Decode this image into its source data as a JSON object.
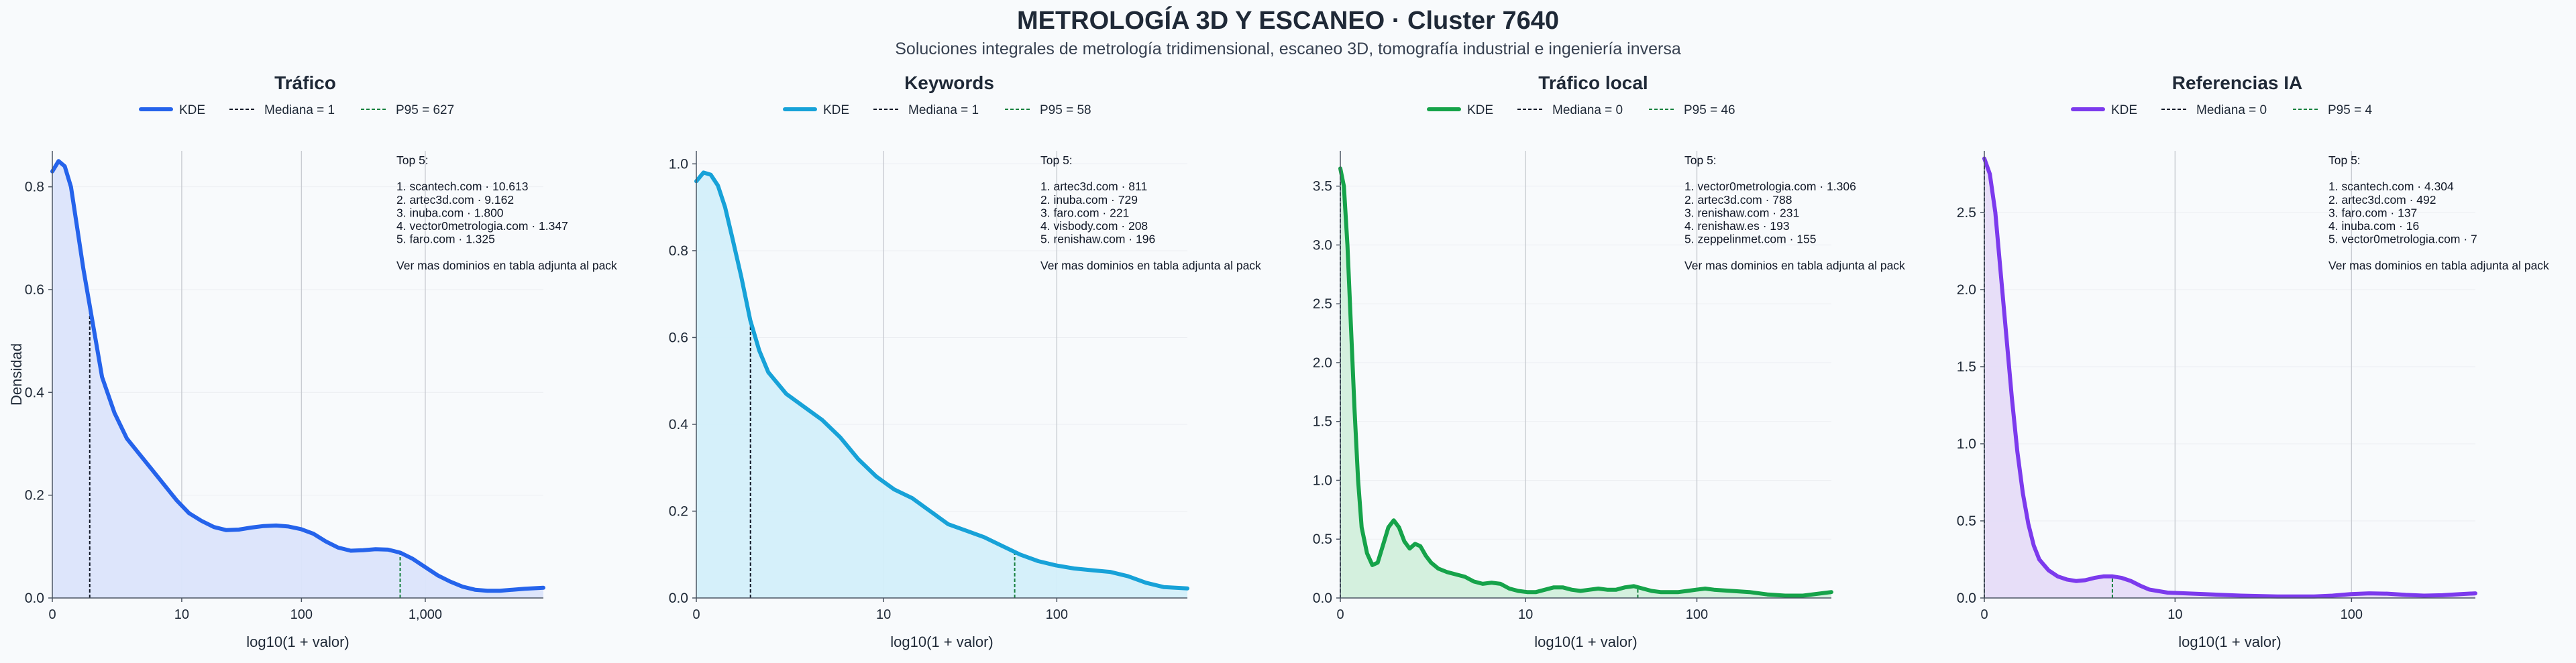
{
  "page": {
    "title": "METROLOGÍA 3D Y ESCANEO · Cluster 7640",
    "subtitle": "Soluciones integrales de metrología tridimensional, escaneo 3D, tomografía industrial e ingeniería inversa"
  },
  "chart_data": [
    {
      "type": "area",
      "title": "Tráfico",
      "xlabel": "log10(1 + valor)",
      "ylabel": "Densidad",
      "color": "#2563eb",
      "fill": "#dbe4fb",
      "xlim": [
        0,
        3.95
      ],
      "ylim": [
        0,
        0.87
      ],
      "x_ticks": [
        {
          "v": 0,
          "label": "0"
        },
        {
          "v": 1.041,
          "label": "10"
        },
        {
          "v": 2.004,
          "label": "100"
        },
        {
          "v": 3.0,
          "label": "1,000"
        }
      ],
      "y_ticks": [
        {
          "v": 0,
          "label": "0.0"
        },
        {
          "v": 0.2,
          "label": "0.2"
        },
        {
          "v": 0.4,
          "label": "0.4"
        },
        {
          "v": 0.6,
          "label": "0.6"
        },
        {
          "v": 0.8,
          "label": "0.8"
        }
      ],
      "legend": {
        "kde": "KDE",
        "median": "Mediana = 1",
        "p95": "P95 = 627"
      },
      "median_x": 0.301,
      "p95_x": 2.798,
      "kde": [
        [
          0,
          0.83
        ],
        [
          0.05,
          0.85
        ],
        [
          0.1,
          0.84
        ],
        [
          0.15,
          0.8
        ],
        [
          0.2,
          0.72
        ],
        [
          0.25,
          0.64
        ],
        [
          0.3,
          0.57
        ],
        [
          0.35,
          0.5
        ],
        [
          0.4,
          0.43
        ],
        [
          0.5,
          0.36
        ],
        [
          0.6,
          0.31
        ],
        [
          0.7,
          0.28
        ],
        [
          0.8,
          0.25
        ],
        [
          0.9,
          0.22
        ],
        [
          1.0,
          0.19
        ],
        [
          1.1,
          0.165
        ],
        [
          1.2,
          0.15
        ],
        [
          1.3,
          0.138
        ],
        [
          1.4,
          0.132
        ],
        [
          1.5,
          0.133
        ],
        [
          1.6,
          0.137
        ],
        [
          1.7,
          0.14
        ],
        [
          1.8,
          0.141
        ],
        [
          1.9,
          0.139
        ],
        [
          2.0,
          0.134
        ],
        [
          2.1,
          0.125
        ],
        [
          2.2,
          0.11
        ],
        [
          2.3,
          0.098
        ],
        [
          2.4,
          0.092
        ],
        [
          2.5,
          0.093
        ],
        [
          2.6,
          0.095
        ],
        [
          2.7,
          0.094
        ],
        [
          2.8,
          0.088
        ],
        [
          2.9,
          0.076
        ],
        [
          3.0,
          0.06
        ],
        [
          3.1,
          0.044
        ],
        [
          3.2,
          0.032
        ],
        [
          3.3,
          0.022
        ],
        [
          3.4,
          0.016
        ],
        [
          3.5,
          0.014
        ],
        [
          3.6,
          0.014
        ],
        [
          3.7,
          0.016
        ],
        [
          3.8,
          0.018
        ],
        [
          3.95,
          0.02
        ]
      ],
      "annotation": [
        "Top 5:",
        "",
        "1. scantech.com · 10.613",
        "2. artec3d.com · 9.162",
        "3. inuba.com · 1.800",
        "4. vector0metrologia.com · 1.347",
        "5. faro.com · 1.325",
        "",
        "Ver mas dominios en tabla adjunta al pack"
      ]
    },
    {
      "type": "area",
      "title": "Keywords",
      "xlabel": "log10(1 + valor)",
      "ylabel": "",
      "color": "#17a2d8",
      "fill": "#d3effa",
      "xlim": [
        0,
        2.73
      ],
      "ylim": [
        0,
        1.03
      ],
      "x_ticks": [
        {
          "v": 0,
          "label": "0"
        },
        {
          "v": 1.041,
          "label": "10"
        },
        {
          "v": 2.004,
          "label": "100"
        }
      ],
      "y_ticks": [
        {
          "v": 0,
          "label": "0.0"
        },
        {
          "v": 0.2,
          "label": "0.2"
        },
        {
          "v": 0.4,
          "label": "0.4"
        },
        {
          "v": 0.6,
          "label": "0.6"
        },
        {
          "v": 0.8,
          "label": "0.8"
        },
        {
          "v": 1.0,
          "label": "1.0"
        }
      ],
      "legend": {
        "kde": "KDE",
        "median": "Mediana = 1",
        "p95": "P95 = 58"
      },
      "median_x": 0.301,
      "p95_x": 1.77,
      "kde": [
        [
          0,
          0.96
        ],
        [
          0.04,
          0.98
        ],
        [
          0.08,
          0.975
        ],
        [
          0.12,
          0.95
        ],
        [
          0.16,
          0.9
        ],
        [
          0.2,
          0.83
        ],
        [
          0.25,
          0.74
        ],
        [
          0.3,
          0.64
        ],
        [
          0.35,
          0.57
        ],
        [
          0.4,
          0.52
        ],
        [
          0.5,
          0.47
        ],
        [
          0.6,
          0.44
        ],
        [
          0.7,
          0.41
        ],
        [
          0.8,
          0.37
        ],
        [
          0.9,
          0.32
        ],
        [
          1.0,
          0.28
        ],
        [
          1.1,
          0.25
        ],
        [
          1.2,
          0.23
        ],
        [
          1.3,
          0.2
        ],
        [
          1.4,
          0.17
        ],
        [
          1.5,
          0.155
        ],
        [
          1.6,
          0.14
        ],
        [
          1.7,
          0.12
        ],
        [
          1.8,
          0.1
        ],
        [
          1.9,
          0.085
        ],
        [
          2.0,
          0.075
        ],
        [
          2.1,
          0.068
        ],
        [
          2.2,
          0.064
        ],
        [
          2.3,
          0.06
        ],
        [
          2.4,
          0.05
        ],
        [
          2.5,
          0.035
        ],
        [
          2.6,
          0.025
        ],
        [
          2.73,
          0.022
        ]
      ],
      "annotation": [
        "Top 5:",
        "",
        "1. artec3d.com · 811",
        "2. inuba.com · 729",
        "3. faro.com · 221",
        "4. visbody.com · 208",
        "5. renishaw.com · 196",
        "",
        "Ver mas dominios en tabla adjunta al pack"
      ]
    },
    {
      "type": "area",
      "title": "Tráfico local",
      "xlabel": "log10(1 + valor)",
      "ylabel": "",
      "color": "#16a34a",
      "fill": "#d2efdc",
      "xlim": [
        0,
        2.76
      ],
      "ylim": [
        0,
        3.8
      ],
      "x_ticks": [
        {
          "v": 0,
          "label": "0"
        },
        {
          "v": 1.041,
          "label": "10"
        },
        {
          "v": 2.004,
          "label": "100"
        }
      ],
      "y_ticks": [
        {
          "v": 0,
          "label": "0.0"
        },
        {
          "v": 0.5,
          "label": "0.5"
        },
        {
          "v": 1.0,
          "label": "1.0"
        },
        {
          "v": 1.5,
          "label": "1.5"
        },
        {
          "v": 2.0,
          "label": "2.0"
        },
        {
          "v": 2.5,
          "label": "2.5"
        },
        {
          "v": 3.0,
          "label": "3.0"
        },
        {
          "v": 3.5,
          "label": "3.5"
        }
      ],
      "legend": {
        "kde": "KDE",
        "median": "Mediana = 0",
        "p95": "P95 = 46"
      },
      "median_x": 0,
      "p95_x": 1.672,
      "kde": [
        [
          0,
          3.65
        ],
        [
          0.02,
          3.5
        ],
        [
          0.04,
          3.0
        ],
        [
          0.06,
          2.3
        ],
        [
          0.08,
          1.6
        ],
        [
          0.1,
          1.0
        ],
        [
          0.12,
          0.6
        ],
        [
          0.15,
          0.38
        ],
        [
          0.18,
          0.28
        ],
        [
          0.21,
          0.3
        ],
        [
          0.24,
          0.45
        ],
        [
          0.27,
          0.6
        ],
        [
          0.3,
          0.66
        ],
        [
          0.33,
          0.6
        ],
        [
          0.36,
          0.48
        ],
        [
          0.39,
          0.42
        ],
        [
          0.42,
          0.46
        ],
        [
          0.45,
          0.44
        ],
        [
          0.48,
          0.36
        ],
        [
          0.51,
          0.3
        ],
        [
          0.55,
          0.25
        ],
        [
          0.6,
          0.22
        ],
        [
          0.65,
          0.2
        ],
        [
          0.7,
          0.18
        ],
        [
          0.75,
          0.14
        ],
        [
          0.8,
          0.12
        ],
        [
          0.85,
          0.13
        ],
        [
          0.9,
          0.12
        ],
        [
          0.95,
          0.08
        ],
        [
          1.0,
          0.06
        ],
        [
          1.05,
          0.05
        ],
        [
          1.1,
          0.05
        ],
        [
          1.15,
          0.07
        ],
        [
          1.2,
          0.09
        ],
        [
          1.25,
          0.09
        ],
        [
          1.3,
          0.07
        ],
        [
          1.35,
          0.06
        ],
        [
          1.4,
          0.07
        ],
        [
          1.45,
          0.08
        ],
        [
          1.5,
          0.07
        ],
        [
          1.55,
          0.07
        ],
        [
          1.6,
          0.09
        ],
        [
          1.65,
          0.1
        ],
        [
          1.7,
          0.08
        ],
        [
          1.75,
          0.06
        ],
        [
          1.8,
          0.05
        ],
        [
          1.85,
          0.05
        ],
        [
          1.9,
          0.05
        ],
        [
          1.95,
          0.06
        ],
        [
          2.0,
          0.07
        ],
        [
          2.05,
          0.08
        ],
        [
          2.1,
          0.07
        ],
        [
          2.2,
          0.06
        ],
        [
          2.3,
          0.05
        ],
        [
          2.4,
          0.03
        ],
        [
          2.5,
          0.02
        ],
        [
          2.6,
          0.02
        ],
        [
          2.76,
          0.05
        ]
      ],
      "annotation": [
        "Top 5:",
        "",
        "1. vector0metrologia.com · 1.306",
        "2. artec3d.com · 788",
        "3. renishaw.com · 231",
        "4. renishaw.es · 193",
        "5. zeppelinmet.com · 155",
        "",
        "Ver mas dominios en tabla adjunta al pack"
      ]
    },
    {
      "type": "area",
      "title": "Referencias IA",
      "xlabel": "log10(1 + valor)",
      "ylabel": "",
      "color": "#7c3aed",
      "fill": "#e6dcf8",
      "xlim": [
        0,
        2.68
      ],
      "ylim": [
        0,
        2.9
      ],
      "x_ticks": [
        {
          "v": 0,
          "label": "0"
        },
        {
          "v": 1.041,
          "label": "10"
        },
        {
          "v": 2.004,
          "label": "100"
        }
      ],
      "y_ticks": [
        {
          "v": 0,
          "label": "0.0"
        },
        {
          "v": 0.5,
          "label": "0.5"
        },
        {
          "v": 1.0,
          "label": "1.0"
        },
        {
          "v": 1.5,
          "label": "1.5"
        },
        {
          "v": 2.0,
          "label": "2.0"
        },
        {
          "v": 2.5,
          "label": "2.5"
        }
      ],
      "legend": {
        "kde": "KDE",
        "median": "Mediana = 0",
        "p95": "P95 = 4"
      },
      "median_x": 0,
      "p95_x": 0.699,
      "kde": [
        [
          0,
          2.85
        ],
        [
          0.03,
          2.75
        ],
        [
          0.06,
          2.5
        ],
        [
          0.09,
          2.1
        ],
        [
          0.12,
          1.7
        ],
        [
          0.15,
          1.3
        ],
        [
          0.18,
          0.95
        ],
        [
          0.21,
          0.68
        ],
        [
          0.24,
          0.48
        ],
        [
          0.27,
          0.34
        ],
        [
          0.3,
          0.25
        ],
        [
          0.35,
          0.18
        ],
        [
          0.4,
          0.14
        ],
        [
          0.45,
          0.12
        ],
        [
          0.5,
          0.11
        ],
        [
          0.55,
          0.115
        ],
        [
          0.6,
          0.13
        ],
        [
          0.65,
          0.14
        ],
        [
          0.7,
          0.14
        ],
        [
          0.75,
          0.13
        ],
        [
          0.8,
          0.11
        ],
        [
          0.85,
          0.08
        ],
        [
          0.9,
          0.055
        ],
        [
          1.0,
          0.035
        ],
        [
          1.1,
          0.03
        ],
        [
          1.2,
          0.025
        ],
        [
          1.4,
          0.015
        ],
        [
          1.6,
          0.01
        ],
        [
          1.8,
          0.01
        ],
        [
          1.9,
          0.015
        ],
        [
          2.0,
          0.025
        ],
        [
          2.1,
          0.03
        ],
        [
          2.2,
          0.028
        ],
        [
          2.3,
          0.02
        ],
        [
          2.4,
          0.015
        ],
        [
          2.5,
          0.018
        ],
        [
          2.6,
          0.025
        ],
        [
          2.68,
          0.03
        ]
      ],
      "annotation": [
        "Top 5:",
        "",
        "1. scantech.com · 4.304",
        "2. artec3d.com · 492",
        "3. faro.com · 137",
        "4. inuba.com · 16",
        "5. vector0metrologia.com · 7",
        "",
        "Ver mas dominios en tabla adjunta al pack"
      ]
    }
  ]
}
